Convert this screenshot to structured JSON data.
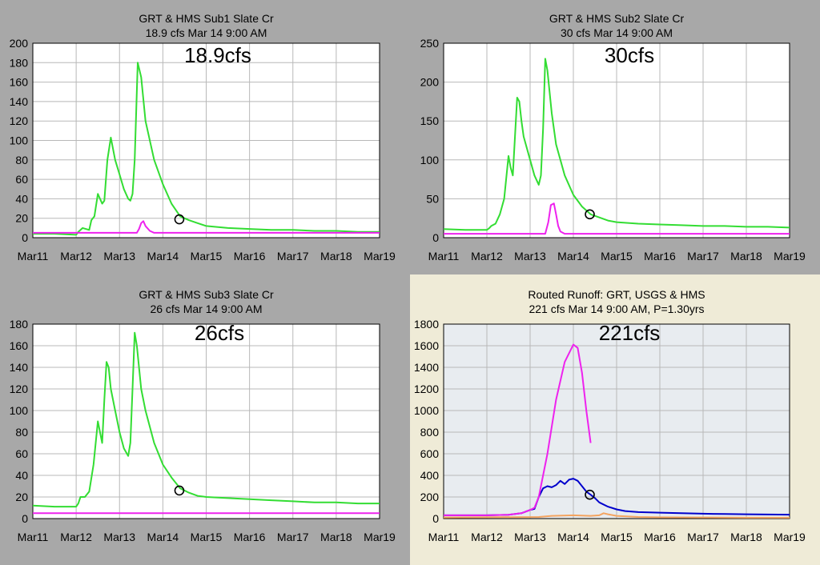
{
  "chart_data": [
    {
      "type": "line",
      "title": "GRT & HMS Sub1 Slate Cr",
      "subtitle": "18.9 cfs Mar 14 9:00 AM",
      "annotation": "18.9cfs",
      "x_tick_labels": [
        "Mar11",
        "Mar12",
        "Mar13",
        "Mar14",
        "Mar15",
        "Mar16",
        "Mar17",
        "Mar18",
        "Mar19"
      ],
      "xlim": [
        0,
        8
      ],
      "ylim": [
        0,
        200
      ],
      "y_ticks": [
        0,
        20,
        40,
        60,
        80,
        100,
        120,
        140,
        160,
        180,
        200
      ],
      "grid": true,
      "marker": {
        "x": 3.38,
        "y": 18.9
      },
      "series": [
        {
          "color": "#33dd33",
          "x": [
            0,
            0.5,
            1.0,
            1.05,
            1.15,
            1.3,
            1.35,
            1.42,
            1.5,
            1.55,
            1.6,
            1.65,
            1.72,
            1.8,
            1.9,
            2.0,
            2.1,
            2.2,
            2.25,
            2.3,
            2.35,
            2.42,
            2.5,
            2.6,
            2.8,
            3.0,
            3.2,
            3.4,
            3.6,
            3.8,
            4.0,
            4.5,
            5,
            5.5,
            6,
            6.5,
            7,
            7.5,
            8
          ],
          "y": [
            4,
            4,
            3,
            6,
            10,
            8,
            18,
            22,
            45,
            40,
            35,
            38,
            80,
            103,
            80,
            65,
            50,
            40,
            38,
            45,
            80,
            180,
            165,
            120,
            80,
            55,
            35,
            22,
            18,
            15,
            12,
            10,
            9,
            8,
            8,
            7,
            7,
            6,
            6
          ]
        },
        {
          "color": "#ee22ee",
          "x": [
            0,
            2.4,
            2.45,
            2.5,
            2.55,
            2.6,
            2.7,
            2.8,
            8
          ],
          "y": [
            5,
            5,
            9,
            15,
            17,
            12,
            7,
            5,
            5
          ]
        }
      ]
    },
    {
      "type": "line",
      "title": "GRT & HMS Sub2 Slate Cr",
      "subtitle": "30 cfs Mar 14 9:00 AM",
      "annotation": "30cfs",
      "x_tick_labels": [
        "Mar11",
        "Mar12",
        "Mar13",
        "Mar14",
        "Mar15",
        "Mar16",
        "Mar17",
        "Mar18",
        "Mar19"
      ],
      "xlim": [
        0,
        8
      ],
      "ylim": [
        0,
        250
      ],
      "y_ticks": [
        0,
        50,
        100,
        150,
        200,
        250
      ],
      "grid": true,
      "marker": {
        "x": 3.38,
        "y": 30
      },
      "series": [
        {
          "color": "#33dd33",
          "x": [
            0,
            0.5,
            1.0,
            1.05,
            1.1,
            1.2,
            1.3,
            1.4,
            1.5,
            1.55,
            1.6,
            1.65,
            1.7,
            1.75,
            1.8,
            1.85,
            2.0,
            2.1,
            2.2,
            2.25,
            2.3,
            2.35,
            2.4,
            2.5,
            2.6,
            2.8,
            3.0,
            3.2,
            3.4,
            3.6,
            3.8,
            4.0,
            4.5,
            5,
            5.5,
            6,
            6.5,
            7,
            7.5,
            8
          ],
          "y": [
            11,
            10,
            10,
            12,
            15,
            18,
            30,
            50,
            105,
            90,
            80,
            130,
            180,
            175,
            150,
            130,
            100,
            80,
            68,
            80,
            140,
            230,
            215,
            160,
            120,
            80,
            55,
            40,
            30,
            26,
            22,
            20,
            18,
            17,
            16,
            15,
            15,
            14,
            14,
            13
          ]
        },
        {
          "color": "#ee22ee",
          "x": [
            0,
            2.35,
            2.42,
            2.48,
            2.55,
            2.6,
            2.65,
            2.7,
            2.8,
            8
          ],
          "y": [
            5,
            5,
            20,
            42,
            44,
            30,
            15,
            8,
            5,
            5
          ]
        }
      ]
    },
    {
      "type": "line",
      "title": "GRT & HMS Sub3 Slate Cr",
      "subtitle": "26 cfs Mar 14 9:00 AM",
      "annotation": "26cfs",
      "x_tick_labels": [
        "Mar11",
        "Mar12",
        "Mar13",
        "Mar14",
        "Mar15",
        "Mar16",
        "Mar17",
        "Mar18",
        "Mar19"
      ],
      "xlim": [
        0,
        8
      ],
      "ylim": [
        0,
        180
      ],
      "y_ticks": [
        0,
        20,
        40,
        60,
        80,
        100,
        120,
        140,
        160,
        180
      ],
      "grid": true,
      "marker": {
        "x": 3.38,
        "y": 26
      },
      "series": [
        {
          "color": "#33dd33",
          "x": [
            0,
            0.5,
            1.0,
            1.05,
            1.1,
            1.2,
            1.3,
            1.4,
            1.5,
            1.55,
            1.6,
            1.65,
            1.7,
            1.75,
            1.8,
            1.9,
            2.0,
            2.1,
            2.2,
            2.25,
            2.3,
            2.35,
            2.4,
            2.5,
            2.6,
            2.8,
            3.0,
            3.2,
            3.4,
            3.6,
            3.8,
            4.0,
            4.5,
            5,
            5.5,
            6,
            6.5,
            7,
            7.5,
            8
          ],
          "y": [
            12,
            11,
            11,
            14,
            20,
            20,
            25,
            50,
            90,
            80,
            70,
            110,
            145,
            140,
            120,
            100,
            80,
            65,
            58,
            70,
            120,
            172,
            160,
            120,
            100,
            70,
            50,
            38,
            28,
            24,
            21,
            20,
            19,
            18,
            17,
            16,
            15,
            15,
            14,
            14
          ]
        },
        {
          "color": "#ee22ee",
          "x": [
            0,
            8
          ],
          "y": [
            5,
            5
          ]
        }
      ]
    },
    {
      "type": "line",
      "title": "Routed Runoff:  GRT, USGS & HMS",
      "subtitle": "221 cfs Mar 14 9:00 AM, P=1.30yrs",
      "annotation": "221cfs",
      "x_tick_labels": [
        "Mar11",
        "Mar12",
        "Mar13",
        "Mar14",
        "Mar15",
        "Mar16",
        "Mar17",
        "Mar18",
        "Mar19"
      ],
      "xlim": [
        0,
        8
      ],
      "ylim": [
        0,
        1800
      ],
      "y_ticks": [
        0,
        200,
        400,
        600,
        800,
        1000,
        1200,
        1400,
        1600,
        1800
      ],
      "grid": true,
      "plot_bg": "#e8ecf0",
      "marker": {
        "x": 3.38,
        "y": 221
      },
      "series": [
        {
          "color": "#0000cc",
          "x": [
            0,
            1.0,
            1.5,
            1.8,
            2.0,
            2.1,
            2.2,
            2.3,
            2.4,
            2.5,
            2.6,
            2.7,
            2.8,
            2.9,
            3.0,
            3.1,
            3.2,
            3.3,
            3.4,
            3.5,
            3.6,
            3.8,
            4.0,
            4.2,
            4.5,
            5,
            5.5,
            6,
            6.5,
            7,
            7.5,
            8
          ],
          "y": [
            30,
            30,
            35,
            50,
            80,
            90,
            200,
            280,
            300,
            290,
            310,
            350,
            320,
            360,
            370,
            350,
            300,
            250,
            221,
            190,
            150,
            110,
            85,
            70,
            60,
            55,
            50,
            45,
            42,
            40,
            38,
            36
          ]
        },
        {
          "color": "#ee22ee",
          "x": [
            0,
            1.0,
            1.5,
            1.8,
            2.0,
            2.1,
            2.2,
            2.4,
            2.6,
            2.8,
            3.0,
            3.1,
            3.2,
            3.3,
            3.4
          ],
          "y": [
            30,
            30,
            35,
            50,
            80,
            100,
            200,
            600,
            1100,
            1450,
            1610,
            1580,
            1350,
            1000,
            700
          ]
        },
        {
          "color": "#f4a460",
          "x": [
            0,
            2.2,
            2.5,
            3.0,
            3.4,
            3.6,
            3.7,
            3.8,
            4.0,
            4.5,
            5,
            6,
            7,
            8
          ],
          "y": [
            10,
            15,
            25,
            30,
            25,
            30,
            50,
            40,
            25,
            15,
            12,
            10,
            8,
            8
          ]
        }
      ]
    }
  ]
}
